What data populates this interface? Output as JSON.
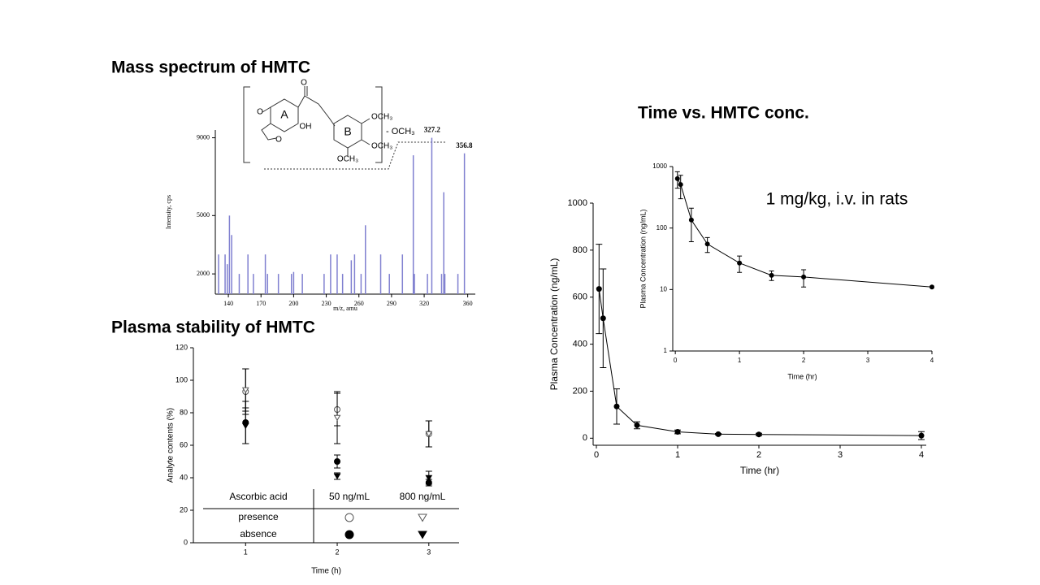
{
  "chart_data": [
    {
      "type": "bar",
      "title": "Mass spectrum of HMTC",
      "xlabel": "m/z, amu",
      "ylabel": "Intensity, cps",
      "color": "#8080d0",
      "x": [
        131,
        137,
        139,
        141,
        143,
        150,
        158,
        163,
        174,
        176,
        186,
        198,
        200,
        208,
        228,
        234,
        240,
        245,
        253,
        256,
        262,
        266,
        280,
        288,
        300,
        310,
        311,
        323,
        327,
        336,
        338,
        339,
        351,
        357
      ],
      "values": [
        3000,
        3000,
        2500,
        5000,
        4000,
        2000,
        3000,
        2000,
        3000,
        2000,
        2000,
        2000,
        2100,
        2000,
        2000,
        3000,
        3000,
        2000,
        2700,
        3000,
        2000,
        4500,
        3000,
        2000,
        3000,
        8100,
        2000,
        2000,
        9000,
        2000,
        6200,
        2000,
        2000,
        8200
      ],
      "xlim": [
        128,
        367
      ],
      "xticks": [
        140,
        170,
        200,
        230,
        260,
        290,
        320,
        360
      ],
      "ylim": [
        960,
        9400
      ],
      "yticks": [
        2000,
        5000,
        9000
      ],
      "peak_labels": [
        327.2,
        356.8
      ],
      "structure_labels": [
        "A",
        "B",
        "OH",
        "OCH₃",
        "OCH₃",
        "OCH₃",
        "- OCH₃",
        "O",
        "O",
        "O"
      ]
    },
    {
      "type": "scatter",
      "title": "Plasma stability of HMTC",
      "xlabel": "Time (h)",
      "ylabel": "Analyte contents (%)",
      "xlim": [
        0.43,
        3.33
      ],
      "xticks": [
        1,
        2,
        3
      ],
      "ylim": [
        0,
        120
      ],
      "yticks": [
        0,
        20,
        40,
        60,
        80,
        100,
        120
      ],
      "x": [
        1,
        2,
        3
      ],
      "series": [
        {
          "marker": "circle",
          "filled": false,
          "color": "#555555",
          "values": [
            93,
            82,
            67
          ],
          "errors": [
            14,
            10,
            8
          ]
        },
        {
          "marker": "triangle",
          "filled": false,
          "color": "#555555",
          "values": [
            94,
            77,
            67
          ],
          "errors": [
            13,
            16,
            8
          ]
        },
        {
          "marker": "circle",
          "filled": true,
          "color": "#000000",
          "values": [
            74,
            50,
            37
          ],
          "errors": [
            13,
            4,
            2
          ]
        },
        {
          "marker": "triangle",
          "filled": true,
          "color": "#000000",
          "values": [
            72,
            41,
            40
          ],
          "errors": [
            11,
            2,
            4
          ]
        }
      ],
      "legend_table": {
        "header": [
          "Ascorbic acid",
          "50 ng/mL",
          "800 ng/mL"
        ],
        "rows": [
          "presence",
          "absence"
        ]
      }
    },
    {
      "type": "line",
      "title": "Time vs. HMTC conc.",
      "annotation": "1 mg/kg, i.v. in rats",
      "xlabel": "Time (hr)",
      "ylabel": "Plasma Concentration (ng/mL)",
      "color": "#000000",
      "x": [
        0.033,
        0.083,
        0.25,
        0.5,
        1,
        1.5,
        2,
        4
      ],
      "values": [
        635,
        510,
        135,
        55,
        27,
        17,
        16,
        11
      ],
      "errors": [
        190,
        210,
        75,
        15,
        8,
        3,
        5,
        17
      ],
      "xlim": [
        -0.04,
        4.06
      ],
      "xticks": [
        0,
        1,
        2,
        3,
        4
      ],
      "ylim": [
        -30,
        1000
      ],
      "yticks": [
        0,
        200,
        400,
        600,
        800,
        1000
      ],
      "inset": {
        "xlabel": "Time (hr)",
        "ylabel": "Plasma Concentration (ng/mL)",
        "log": true,
        "xlim": [
          -0.04,
          4
        ],
        "xticks": [
          0,
          1,
          2,
          3,
          4
        ],
        "ylim": [
          1,
          1000
        ],
        "yticks": [
          1,
          10,
          100,
          1000
        ]
      }
    }
  ]
}
